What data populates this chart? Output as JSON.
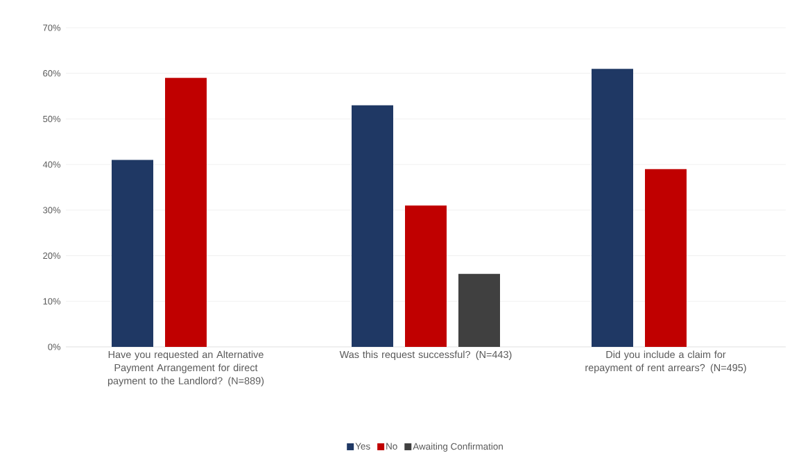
{
  "chart_data": {
    "type": "bar",
    "categories": [
      "Have you requested an Alternative Payment Arrangement for direct payment to the Landlord? (N=889)",
      "Was this request successful? (N=443)",
      "Did you include a claim for repayment of rent arrears? (N=495)"
    ],
    "series": [
      {
        "name": "Yes",
        "color": "#1f3864",
        "values": [
          41,
          53,
          61
        ]
      },
      {
        "name": "No",
        "color": "#c00000",
        "values": [
          59,
          31,
          39
        ]
      },
      {
        "name": "Awaiting Confirmation",
        "color": "#404040",
        "values": [
          null,
          16,
          null
        ]
      }
    ],
    "ylim": [
      0,
      70
    ],
    "yticks": [
      {
        "value": 0,
        "label": "0%"
      },
      {
        "value": 10,
        "label": "10%"
      },
      {
        "value": 20,
        "label": "20%"
      },
      {
        "value": 30,
        "label": "30%"
      },
      {
        "value": 40,
        "label": "40%"
      },
      {
        "value": 50,
        "label": "50%"
      },
      {
        "value": 60,
        "label": "60%"
      },
      {
        "value": 70,
        "label": "70%"
      }
    ],
    "grid": "y",
    "legend": "bottom"
  }
}
